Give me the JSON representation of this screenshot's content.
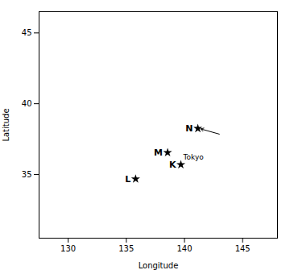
{
  "chart_data": {
    "type": "scatter",
    "xlabel": "Longitude",
    "ylabel": "Latitude",
    "xlim": [
      127.5,
      148.0
    ],
    "ylim": [
      30.5,
      46.5
    ],
    "xticks": [
      130,
      135,
      140,
      145
    ],
    "yticks": [
      35,
      40,
      45
    ],
    "x": [
      139.69,
      135.8,
      138.55,
      141.15
    ],
    "y": [
      35.69,
      34.68,
      36.55,
      38.25
    ],
    "labels": [
      "K",
      "L",
      "M",
      "N"
    ],
    "marker": "star",
    "color": "#000000",
    "annotations": [
      {
        "text": "Tokyo",
        "x": 139.69,
        "y": 35.69
      }
    ],
    "arrows": [
      {
        "x1": 143.0,
        "y1": 37.85,
        "x2": 141.4,
        "y2": 38.22
      }
    ]
  }
}
